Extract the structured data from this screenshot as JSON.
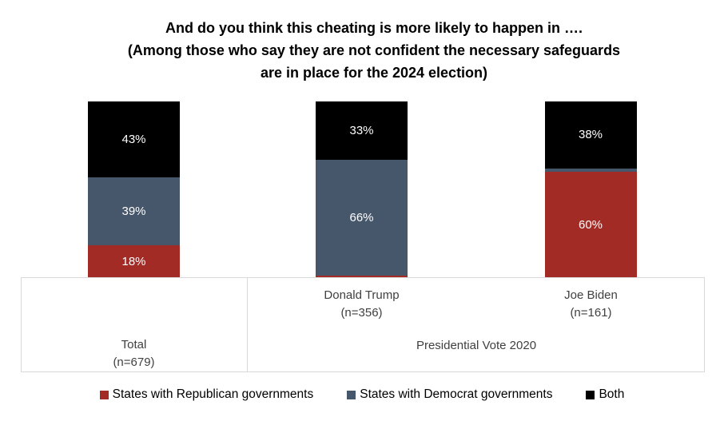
{
  "chart_data": {
    "type": "bar",
    "subtype": "stacked-100-percent",
    "title_lines": [
      "And do you think this cheating is more likely to happen in ….",
      "(Among those who say they are not confident the necessary safeguards",
      "are in place for the 2024 election)"
    ],
    "categories": [
      {
        "label": "Total",
        "n": "(n=679)"
      },
      {
        "label": "Donald Trump",
        "n": "(n=356)"
      },
      {
        "label": "Joe Biden",
        "n": "(n=161)"
      }
    ],
    "group_label": "Presidential Vote 2020",
    "series": [
      {
        "name": "States with Republican governments",
        "color": "#A22B26",
        "values": [
          18,
          1,
          60
        ],
        "value_labels": [
          "18%",
          "",
          "60%"
        ]
      },
      {
        "name": "States with Democrat governments",
        "color": "#46566B",
        "values": [
          39,
          66,
          2
        ],
        "value_labels": [
          "39%",
          "66%",
          ""
        ]
      },
      {
        "name": "Both",
        "color": "#000000",
        "values": [
          43,
          33,
          38
        ],
        "value_labels": [
          "43%",
          "33%",
          "38%"
        ]
      }
    ],
    "ylim": [
      0,
      100
    ],
    "grid": false,
    "legend_position": "bottom",
    "value_label_color": "#FFFFFF",
    "axis_box_border_color": "#D9D9D9",
    "axis_text_color": "#404040"
  }
}
